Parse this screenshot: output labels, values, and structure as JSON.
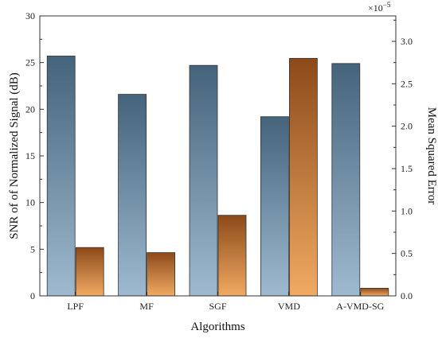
{
  "chart_data": {
    "type": "bar",
    "title": "",
    "xlabel": "Algorithms",
    "categories": [
      "LPF",
      "MF",
      "SGF",
      "VMD",
      "A-VMD-SG"
    ],
    "series": [
      {
        "name": "SNR of of Normalized Signal (dB)",
        "axis": "left",
        "values": [
          25.7,
          21.6,
          24.7,
          19.2,
          24.9
        ],
        "color_top": "#44647c",
        "color_bottom": "#9fbad0"
      },
      {
        "name": "Mean Squared Error",
        "axis": "right",
        "values": [
          0.57,
          0.51,
          0.95,
          2.8,
          0.09
        ],
        "color_top": "#8c4a1a",
        "color_bottom": "#f0aa62"
      }
    ],
    "y_left": {
      "label": "SNR of of Normalized Signal (dB)",
      "lim": [
        0,
        30
      ],
      "ticks": [
        "0",
        "5",
        "10",
        "15",
        "20",
        "25",
        "30"
      ]
    },
    "y_right": {
      "label": "Mean Squared Error",
      "lim": [
        0,
        3.3
      ],
      "ticks": [
        "0.0",
        "0.5",
        "1.0",
        "1.5",
        "2.0",
        "2.5",
        "3.0"
      ],
      "multiplier_base": "×10",
      "multiplier_exp": "−5"
    },
    "grid": false,
    "legend": "none"
  }
}
